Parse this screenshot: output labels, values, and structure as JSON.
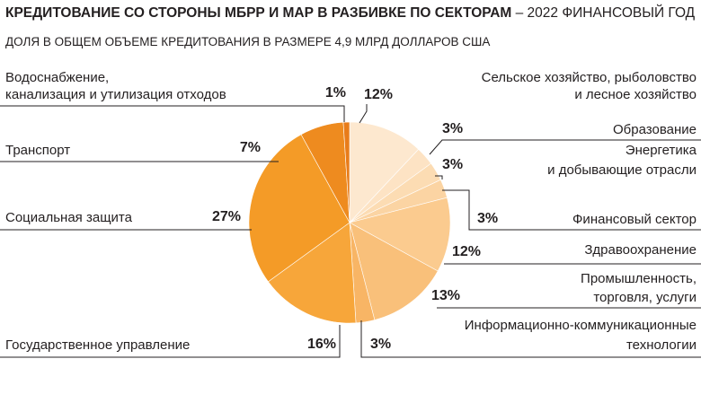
{
  "title_bold": "КРЕДИТОВАНИЕ СО СТОРОНЫ МБРР И МАР В РАЗБИВКЕ ПО СЕКТОРАМ",
  "title_rest": " – 2022 ФИНАНСОВЫЙ ГОД",
  "subtitle": "ДОЛЯ В ОБЩЕМ ОБЪЕМЕ КРЕДИТОВАНИЯ В РАЗМЕРЕ 4,9 МЛРД ДОЛЛАРОВ США",
  "chart_data": {
    "type": "pie",
    "title": "КРЕДИТОВАНИЕ СО СТОРОНЫ МБРР И МАР В РАЗБИВКЕ ПО СЕКТОРАМ – 2022 ФИНАНСОВЫЙ ГОД",
    "slices": [
      {
        "label": [
          "Сельское хозяйство, рыболовство",
          "и лесное хозяйство"
        ],
        "value": 12,
        "value_label": "12%",
        "color": "#fde8cf"
      },
      {
        "label": [
          "Образование"
        ],
        "value": 3,
        "value_label": "3%",
        "color": "#fde3c4"
      },
      {
        "label": [
          "Энергетика",
          "и добывающие отрасли"
        ],
        "value": 3,
        "value_label": "3%",
        "color": "#fcdcb3"
      },
      {
        "label": [
          "Финансовый сектор"
        ],
        "value": 3,
        "value_label": "3%",
        "color": "#fbd4a3"
      },
      {
        "label": [
          "Здравоохранение"
        ],
        "value": 12,
        "value_label": "12%",
        "color": "#fbcb8f"
      },
      {
        "label": [
          "Промышленность,",
          "торговля, услуги"
        ],
        "value": 13,
        "value_label": "13%",
        "color": "#f9c07a"
      },
      {
        "label": [
          "Информационно-коммуникационные",
          "технологии"
        ],
        "value": 3,
        "value_label": "3%",
        "color": "#f8b565"
      },
      {
        "label": [
          "Государственное управление"
        ],
        "value": 16,
        "value_label": "16%",
        "color": "#f7a63a"
      },
      {
        "label": [
          "Социальная защита"
        ],
        "value": 27,
        "value_label": "27%",
        "color": "#f49b27"
      },
      {
        "label": [
          "Транспорт"
        ],
        "value": 7,
        "value_label": "7%",
        "color": "#ee8b1f"
      },
      {
        "label": [
          "Водоснабжение,",
          "канализация и утилизация отходов"
        ],
        "value": 1,
        "value_label": "1%",
        "color": "#e87c1a"
      }
    ]
  }
}
